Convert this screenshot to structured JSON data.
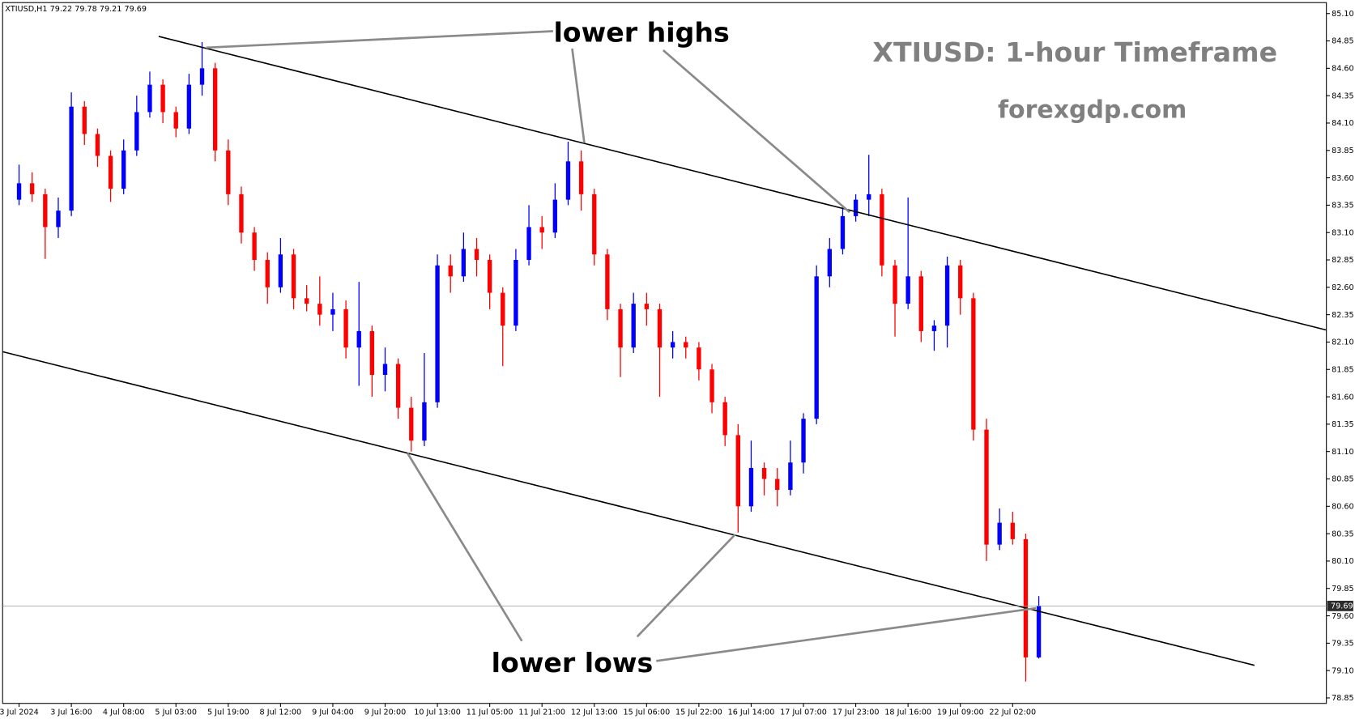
{
  "chart_data": {
    "type": "candlestick",
    "header": "XTIUSD,H1  79.22 79.78 79.21 79.69",
    "title": "XTIUSD: 1-hour Timeframe",
    "subtitle": "forexgdp.com",
    "annotations": [
      "lower highs",
      "lower lows"
    ],
    "categories": [
      "3 Jul 2024",
      null,
      null,
      null,
      "3 Jul 16:00",
      null,
      null,
      null,
      "4 Jul 08:00",
      null,
      null,
      null,
      "5 Jul 03:00",
      null,
      null,
      null,
      "5 Jul 19:00",
      null,
      null,
      null,
      "8 Jul 12:00",
      null,
      null,
      null,
      "9 Jul 04:00",
      null,
      null,
      null,
      "9 Jul 20:00",
      null,
      null,
      null,
      "10 Jul 13:00",
      null,
      null,
      null,
      "11 Jul 05:00",
      null,
      null,
      null,
      "11 Jul 21:00",
      null,
      null,
      null,
      "12 Jul 13:00",
      null,
      null,
      null,
      "15 Jul 06:00",
      null,
      null,
      null,
      "15 Jul 22:00",
      null,
      null,
      null,
      "16 Jul 14:00",
      null,
      null,
      null,
      "17 Jul 07:00",
      null,
      null,
      null,
      "17 Jul 23:00",
      null,
      null,
      null,
      "18 Jul 16:00",
      null,
      null,
      null,
      "19 Jul 09:00",
      null,
      null,
      null,
      "22 Jul 02:00",
      null,
      null
    ],
    "open": [
      83.4,
      83.55,
      83.45,
      83.15,
      83.3,
      84.25,
      84.0,
      83.8,
      83.5,
      83.85,
      84.2,
      84.45,
      84.2,
      84.05,
      84.45,
      84.6,
      83.85,
      83.45,
      83.1,
      82.85,
      82.6,
      82.9,
      82.5,
      82.45,
      82.35,
      82.4,
      82.05,
      82.2,
      81.8,
      81.9,
      81.5,
      81.2,
      81.55,
      82.8,
      82.7,
      82.95,
      82.85,
      82.55,
      82.25,
      82.85,
      83.15,
      83.1,
      83.4,
      83.75,
      83.45,
      82.9,
      82.4,
      82.05,
      82.45,
      82.4,
      82.05,
      82.1,
      82.05,
      81.85,
      81.55,
      81.25,
      80.6,
      80.95,
      80.85,
      80.75,
      81.0,
      81.4,
      82.7,
      82.95,
      83.25,
      83.4,
      83.45,
      82.8,
      82.45,
      82.7,
      82.2,
      82.25,
      82.8,
      82.5,
      81.3,
      80.25,
      80.45,
      80.3,
      79.22
    ],
    "high": [
      83.72,
      83.65,
      83.5,
      83.42,
      84.38,
      84.3,
      84.05,
      83.85,
      83.95,
      84.35,
      84.57,
      84.5,
      84.25,
      84.55,
      84.84,
      84.65,
      83.95,
      83.52,
      83.15,
      82.92,
      83.05,
      82.95,
      82.62,
      82.7,
      82.55,
      82.48,
      82.65,
      82.25,
      82.05,
      81.95,
      81.6,
      82.0,
      82.9,
      82.9,
      83.1,
      83.05,
      82.9,
      82.6,
      82.95,
      83.35,
      83.25,
      83.55,
      83.93,
      83.85,
      83.5,
      82.95,
      82.45,
      82.55,
      82.55,
      82.45,
      82.2,
      82.15,
      82.1,
      81.9,
      81.6,
      81.35,
      81.2,
      81.0,
      80.95,
      81.2,
      81.45,
      82.8,
      83.05,
      83.35,
      83.45,
      83.81,
      83.5,
      82.85,
      83.42,
      82.75,
      82.3,
      82.88,
      82.85,
      82.55,
      81.4,
      80.58,
      80.55,
      80.35,
      79.78
    ],
    "low": [
      83.35,
      83.38,
      82.86,
      83.05,
      83.25,
      83.9,
      83.7,
      83.38,
      83.45,
      83.8,
      84.15,
      84.1,
      83.97,
      84.0,
      84.35,
      83.75,
      83.35,
      83.0,
      82.75,
      82.45,
      82.55,
      82.4,
      82.38,
      82.25,
      82.2,
      81.95,
      81.7,
      81.6,
      81.65,
      81.4,
      81.1,
      81.15,
      81.5,
      82.55,
      82.65,
      82.7,
      82.4,
      81.88,
      82.2,
      82.8,
      82.95,
      83.05,
      83.35,
      83.3,
      82.8,
      82.3,
      81.78,
      82.0,
      82.25,
      81.6,
      81.95,
      81.95,
      81.75,
      81.45,
      81.15,
      80.36,
      80.55,
      80.7,
      80.6,
      80.7,
      80.9,
      81.35,
      82.6,
      82.9,
      83.2,
      83.25,
      82.7,
      82.15,
      82.4,
      82.1,
      82.02,
      82.05,
      82.35,
      81.2,
      80.1,
      80.2,
      80.25,
      79.0,
      79.21
    ],
    "close": [
      83.55,
      83.45,
      83.15,
      83.3,
      84.25,
      84.0,
      83.8,
      83.5,
      83.85,
      84.2,
      84.45,
      84.2,
      84.05,
      84.45,
      84.6,
      83.85,
      83.45,
      83.1,
      82.85,
      82.6,
      82.9,
      82.5,
      82.45,
      82.35,
      82.4,
      82.05,
      82.2,
      81.8,
      81.9,
      81.5,
      81.2,
      81.55,
      82.8,
      82.7,
      82.95,
      82.85,
      82.55,
      82.25,
      82.85,
      83.15,
      83.1,
      83.4,
      83.75,
      83.45,
      82.9,
      82.4,
      82.05,
      82.45,
      82.4,
      82.05,
      82.1,
      82.05,
      81.85,
      81.55,
      81.25,
      80.6,
      80.95,
      80.85,
      80.75,
      81.0,
      81.4,
      82.7,
      82.95,
      83.25,
      83.4,
      83.45,
      82.8,
      82.45,
      82.7,
      82.2,
      82.25,
      82.8,
      82.5,
      81.3,
      80.25,
      80.45,
      80.3,
      79.22,
      79.69
    ],
    "up_color": "#0000ff",
    "down_color": "#ff0000",
    "ylim": [
      78.8,
      85.2
    ],
    "yticks": [
      {
        "value": 85.1,
        "label": "85.10"
      },
      84.85,
      {
        "value": 84.6,
        "label": "84.60"
      },
      84.35,
      {
        "value": 84.1,
        "label": "84.10"
      },
      83.85,
      {
        "value": 83.6,
        "label": "83.60"
      },
      83.35,
      {
        "value": 83.1,
        "label": "83.10"
      },
      82.85,
      {
        "value": 82.6,
        "label": "82.60"
      },
      82.35,
      {
        "value": 82.1,
        "label": "82.10"
      },
      81.85,
      {
        "value": 81.6,
        "label": "81.60"
      },
      81.35,
      {
        "value": 81.1,
        "label": "81.10"
      },
      80.85,
      {
        "value": 80.6,
        "label": "80.60"
      },
      80.35,
      {
        "value": 80.1,
        "label": "80.10"
      },
      79.85,
      {
        "value": 79.6,
        "label": "79.60"
      },
      79.35,
      {
        "value": 79.1,
        "label": "79.10"
      },
      78.85
    ],
    "current_price": 79.69
  }
}
